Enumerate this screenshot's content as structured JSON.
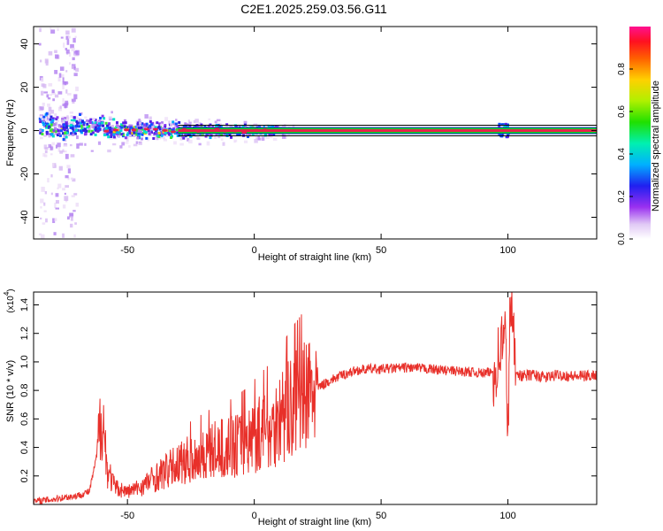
{
  "title": "C2E1.2025.259.03.56.G11",
  "colors": {
    "snr_line": "#e8302a",
    "track_red": "#e8204a",
    "track_green": "#00dd20"
  },
  "chart_data": [
    {
      "type": "heatmap",
      "title": "C2E1.2025.259.03.56.G11",
      "xlabel": "Height of straight line (km)",
      "ylabel": "Frequency (Hz)",
      "xlim": [
        -87,
        135
      ],
      "ylim": [
        -50,
        48
      ],
      "x_ticks": [
        -50,
        0,
        50,
        100
      ],
      "x_tick_labels": [
        "-50",
        "0",
        "50",
        "100"
      ],
      "y_ticks": [
        -40,
        -20,
        0,
        20,
        40
      ],
      "y_tick_labels": [
        "-40",
        "-20",
        "0",
        "20",
        "40"
      ],
      "colorbar": {
        "label": "Normalized spectral amplitude",
        "range": [
          0,
          1
        ],
        "ticks": [
          0.0,
          0.2,
          0.4,
          0.6,
          0.8
        ],
        "tick_labels": [
          "0.0",
          "0.2",
          "0.4",
          "0.6",
          "0.8"
        ]
      },
      "grid": false
    },
    {
      "type": "line",
      "xlabel": "Height of straight line (km)",
      "ylabel": "SNR (10 * v/v)",
      "y_multiplier": "(x10",
      "y_multiplier_exp": "4",
      "xlim": [
        -87,
        135
      ],
      "ylim": [
        0,
        14900
      ],
      "x_ticks": [
        -50,
        0,
        50,
        100
      ],
      "x_tick_labels": [
        "-50",
        "0",
        "50",
        "100"
      ],
      "y_ticks": [
        2000,
        4000,
        6000,
        8000,
        10000,
        12000,
        14000
      ],
      "y_tick_labels": [
        "0.2",
        "0.4",
        "0.6",
        "0.8",
        "1.0",
        "1.2",
        "1.4"
      ],
      "grid": false,
      "series": [
        {
          "x": [
            -87,
            -80,
            -75,
            -70,
            -65,
            -62,
            -60,
            -58,
            -55,
            -50,
            -45,
            -40,
            -35,
            -30,
            -25,
            -20,
            -15,
            -10,
            -5,
            0,
            5,
            10,
            15,
            20,
            25,
            30,
            35,
            40,
            45,
            50,
            55,
            60,
            65,
            70,
            75,
            80,
            85,
            90,
            95,
            97,
            99,
            100,
            101,
            103,
            105,
            110,
            115,
            120,
            125,
            130,
            135
          ],
          "values": [
            200,
            350,
            500,
            600,
            900,
            3500,
            6800,
            2500,
            1200,
            900,
            1200,
            1800,
            2300,
            2800,
            3200,
            3500,
            3800,
            4000,
            4300,
            4800,
            5300,
            6000,
            6800,
            7500,
            8200,
            8700,
            9100,
            9400,
            9500,
            9500,
            9550,
            9600,
            9550,
            9500,
            9400,
            9350,
            9300,
            9200,
            9300,
            11000,
            12000,
            5000,
            14800,
            9500,
            9000,
            9100,
            8900,
            9100,
            9000,
            9000,
            9100
          ]
        }
      ]
    }
  ]
}
